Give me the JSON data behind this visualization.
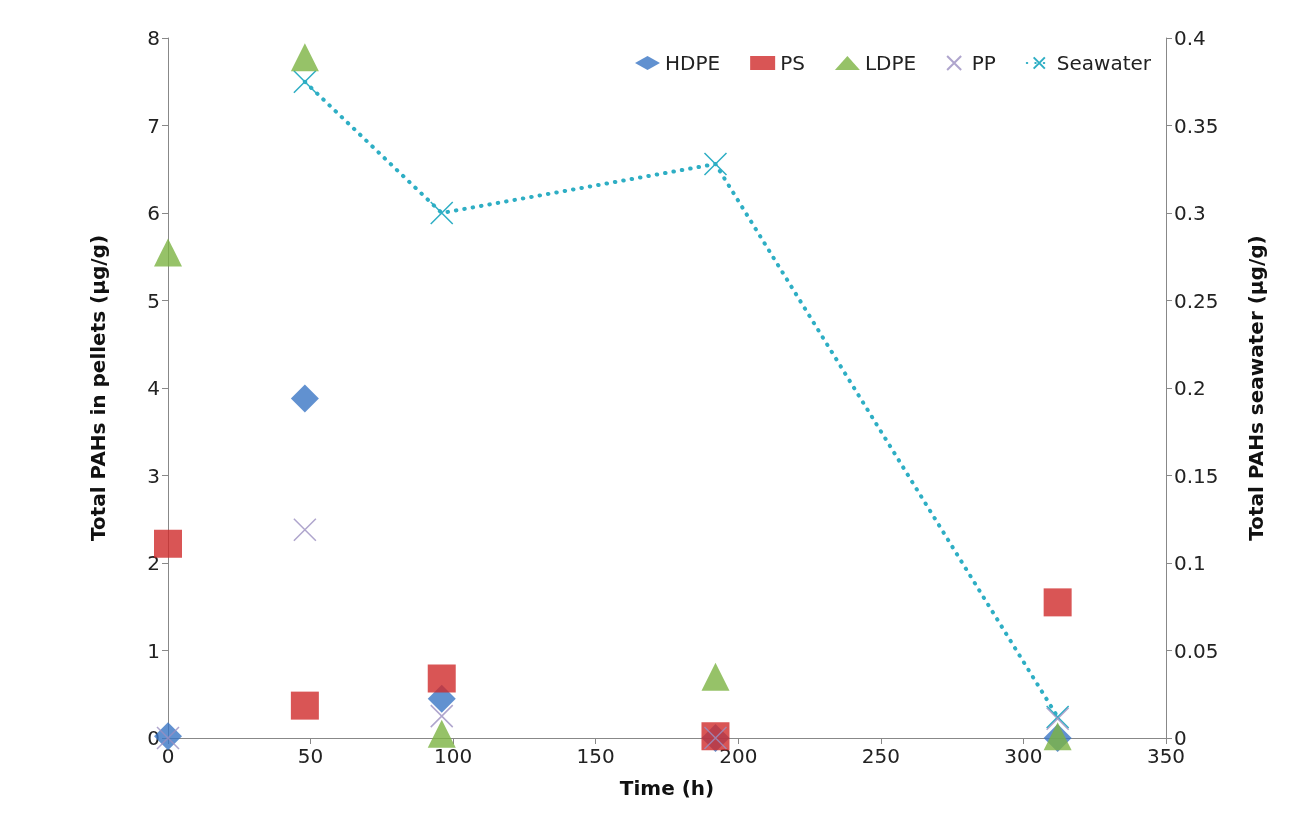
{
  "chart_data": {
    "type": "scatter",
    "xlabel": "Time (h)",
    "ylabel": "Total PAHs in pellets (µg/g)",
    "y2label": "Total PAHs seawater (µg/g)",
    "x": [
      0,
      48,
      96,
      192,
      312
    ],
    "xlim": [
      0,
      350
    ],
    "xticks": [
      0,
      50,
      100,
      150,
      200,
      250,
      300,
      350
    ],
    "ylim": [
      0,
      8
    ],
    "yticks": [
      0,
      1,
      2,
      3,
      4,
      5,
      6,
      7,
      8
    ],
    "y2lim": [
      0,
      0.4
    ],
    "y2ticks": [
      0,
      0.05,
      0.1,
      0.15,
      0.2,
      0.25,
      0.3,
      0.35,
      0.4
    ],
    "grid": false,
    "legend": "top right",
    "series": [
      {
        "name": "HDPE",
        "color": "#3a75c4",
        "marker": "diamond",
        "values": [
          0.02,
          3.88,
          0.45,
          0,
          0
        ]
      },
      {
        "name": "PS",
        "color": "#d02a2a",
        "marker": "square",
        "values": [
          2.22,
          0.37,
          0.68,
          0.02,
          1.55
        ]
      },
      {
        "name": "LDPE",
        "color": "#7cb342",
        "marker": "triangle",
        "values": [
          5.55,
          7.78,
          0.05,
          0.7,
          0.02
        ]
      },
      {
        "name": "PP",
        "color": "#9b8fc0",
        "marker": "cross",
        "values": [
          0,
          2.38,
          0.25,
          0,
          0.22
        ]
      },
      {
        "name": "Seawater",
        "color": "#2eaec4",
        "type": "line",
        "axis": "y2",
        "marker": "cross",
        "line_style": "dotted",
        "x": [
          48,
          96,
          192,
          312
        ],
        "values": [
          0.375,
          0.3,
          0.328,
          0.012
        ]
      }
    ]
  }
}
